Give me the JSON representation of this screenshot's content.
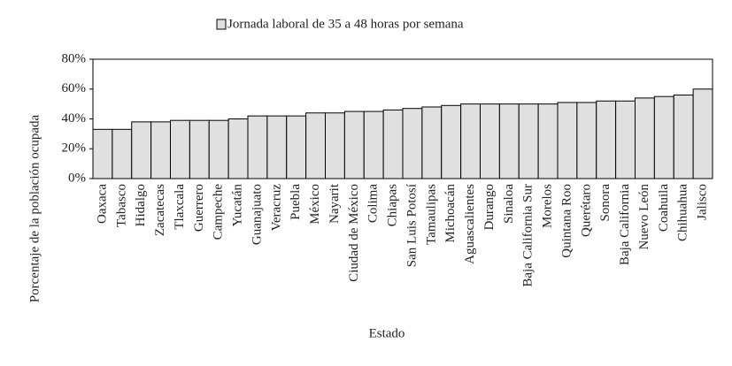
{
  "chart_data": {
    "type": "bar",
    "legend_name": "Jornada laboral de 35 a 48 horas por semana",
    "x_label": "Estado",
    "y_label": "Porcentaje de la población ocupada",
    "categories": [
      "Oaxaca",
      "Tabasco",
      "Hidalgo",
      "Zacatecas",
      "Tlaxcala",
      "Guerrero",
      "Campeche",
      "Yucatán",
      "Guanajuato",
      "Veracruz",
      "Puebla",
      "México",
      "Nayarit",
      "Ciudad de México",
      "Colima",
      "Chiapas",
      "San Luis Potosí",
      "Tamaulipas",
      "Michoacán",
      "Aguascalientes",
      "Durango",
      "Sinaloa",
      "Baja California Sur",
      "Morelos",
      "Quintana Roo",
      "Querétaro",
      "Sonora",
      "Baja California",
      "Nuevo León",
      "Coahuila",
      "Chihuahua",
      "Jalisco"
    ],
    "values": [
      33,
      33,
      38,
      38,
      39,
      39,
      39,
      40,
      42,
      42,
      42,
      44,
      44,
      45,
      45,
      46,
      47,
      48,
      49,
      50,
      50,
      50,
      50,
      50,
      51,
      51,
      52,
      52,
      54,
      55,
      56,
      60
    ],
    "color": "#e0e0e0",
    "ylim": [
      0,
      80
    ],
    "yticks": [
      {
        "value": 0,
        "label": "0%"
      },
      {
        "value": 20,
        "label": "20%"
      },
      {
        "value": 40,
        "label": "40%"
      },
      {
        "value": 60,
        "label": "60%"
      },
      {
        "value": 80,
        "label": "80%"
      }
    ],
    "grid": false
  }
}
